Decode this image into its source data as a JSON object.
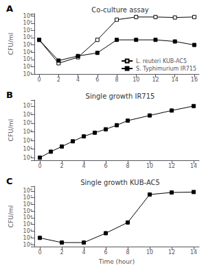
{
  "chart_data": [
    {
      "type": "line",
      "title": "Co-culture assay",
      "annotations": [
        {
          "text": "A"
        }
      ],
      "ylabel": "CFU/ml",
      "x": [
        0,
        2,
        4,
        6,
        8,
        10,
        12,
        14,
        16
      ],
      "series": [
        {
          "name": "L. reuteri KUB-AC5",
          "color": "#000000",
          "marker": "square_open",
          "line_style": "solid",
          "values": [
            500000,
            300,
            2000,
            500000,
            300000000,
            700000000,
            700000000,
            600000000,
            700000000
          ]
        },
        {
          "name": "S. Typhimurium IR715",
          "color": "#000000",
          "marker": "square",
          "line_style": "solid",
          "values": [
            500000,
            700,
            3000,
            8000,
            500000,
            500000,
            500000,
            300000,
            100000
          ]
        }
      ],
      "xlim": [
        -0.5,
        16.5
      ],
      "xticks": [
        0,
        2,
        4,
        6,
        8,
        10,
        12,
        14,
        16
      ],
      "ylim": [
        10,
        2000000000
      ],
      "yticks": [
        {
          "value": 10,
          "label": "10¹"
        },
        {
          "value": 100,
          "label": "10²"
        },
        {
          "value": 1000,
          "label": "10³"
        },
        {
          "value": 10000,
          "label": "10⁴"
        },
        {
          "value": 100000,
          "label": "10⁵"
        },
        {
          "value": 1000000,
          "label": "10⁶"
        },
        {
          "value": 10000000,
          "label": "10⁷"
        },
        {
          "value": 100000000,
          "label": "10⁸"
        },
        {
          "value": 1000000000,
          "label": "10⁹"
        }
      ],
      "log": "y",
      "grid": false,
      "legend": "lower right"
    },
    {
      "type": "line",
      "title": "Single growth IR715",
      "annotations": [
        {
          "text": "B"
        }
      ],
      "ylabel": "CFU/ml",
      "x": [
        0,
        1,
        2,
        3,
        4,
        5,
        6,
        7,
        8,
        10,
        12,
        14
      ],
      "series": [
        {
          "color": "#000000",
          "marker": "square",
          "line_style": "solid",
          "values": [
            10,
            50,
            200,
            800,
            3000,
            8000,
            20000,
            60000,
            200000,
            800000,
            3000000,
            10000000
          ]
        }
      ],
      "xlim": [
        -0.5,
        14.5
      ],
      "xticks": [
        0,
        2,
        4,
        6,
        8,
        10,
        12,
        14
      ],
      "ylim": [
        5,
        50000000
      ],
      "yticks": [
        {
          "value": 10,
          "label": "10¹"
        },
        {
          "value": 100,
          "label": "10²"
        },
        {
          "value": 1000,
          "label": "10³"
        },
        {
          "value": 10000,
          "label": "10⁴"
        },
        {
          "value": 100000,
          "label": "10⁵"
        },
        {
          "value": 1000000,
          "label": "10⁶"
        },
        {
          "value": 10000000,
          "label": "10⁷"
        }
      ],
      "log": "y",
      "grid": false
    },
    {
      "type": "line",
      "title": "Single growth KUB-AC5",
      "annotations": [
        {
          "text": "C"
        }
      ],
      "xlabel": "Time (hour)",
      "ylabel": "CFU/ml",
      "x": [
        0,
        2,
        4,
        6,
        8,
        10,
        12,
        14
      ],
      "series": [
        {
          "color": "#000000",
          "marker": "square",
          "line_style": "solid",
          "values": [
            10,
            2,
            2,
            50,
            2000,
            30000000,
            60000000,
            70000000
          ],
          "errors": [
            0,
            0.6,
            0.6,
            0,
            0,
            0,
            0,
            0
          ]
        }
      ],
      "xlim": [
        -0.5,
        14.5
      ],
      "xticks": [
        0,
        2,
        4,
        6,
        8,
        10,
        12,
        14
      ],
      "ylim": [
        0.5,
        500000000
      ],
      "yticks": [
        {
          "value": 1,
          "label": "10⁰"
        },
        {
          "value": 10,
          "label": "10¹"
        },
        {
          "value": 100,
          "label": "10²"
        },
        {
          "value": 1000,
          "label": "10³"
        },
        {
          "value": 10000,
          "label": "10⁴"
        },
        {
          "value": 100000,
          "label": "10⁵"
        },
        {
          "value": 1000000,
          "label": "10⁶"
        },
        {
          "value": 10000000,
          "label": "10⁷"
        },
        {
          "value": 100000000,
          "label": "10⁸"
        }
      ],
      "log": "y",
      "grid": false
    }
  ]
}
